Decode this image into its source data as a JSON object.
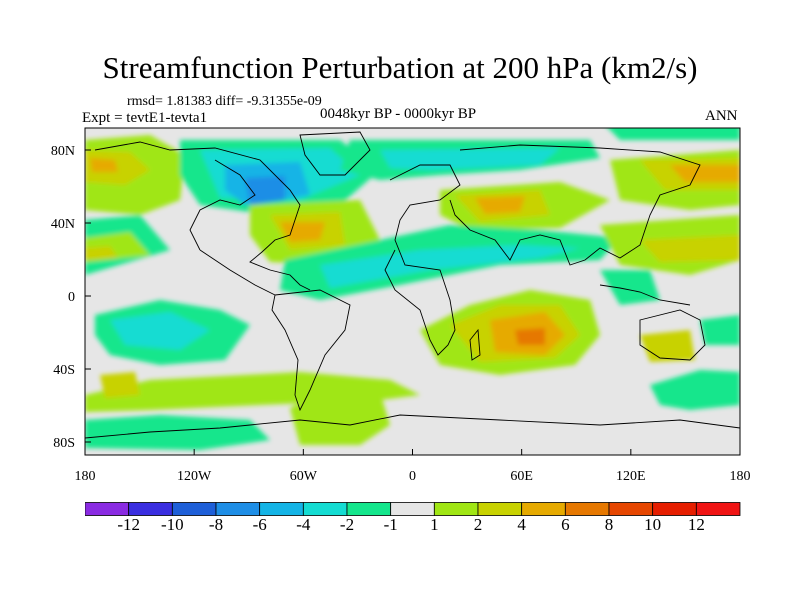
{
  "title": "Streamfunction Perturbation at 200 hPa (km2/s)",
  "stats_text": "rmsd= 1.81383 diff= -9.31355e-09",
  "experiment_text": "Expt = tevtE1-tevta1",
  "period_text": "0048kyr BP - 0000kyr BP",
  "season_text": "ANN",
  "chart_data": {
    "type": "heatmap",
    "map_projection": "cylindrical-equidistant",
    "variable": "Streamfunction Perturbation at 200 hPa",
    "units": "km2/s",
    "x_ticks": [
      "180",
      "120W",
      "60W",
      "0",
      "60E",
      "120E",
      "180"
    ],
    "y_ticks": [
      "80N",
      "40N",
      "0",
      "40S",
      "80S"
    ],
    "xlim": [
      -180,
      180
    ],
    "ylim": [
      -90,
      90
    ],
    "colorbar": {
      "levels": [
        "-12",
        "-10",
        "-8",
        "-6",
        "-4",
        "-2",
        "-1",
        "1",
        "2",
        "4",
        "6",
        "8",
        "10",
        "12"
      ],
      "colors": [
        "#8a2be2",
        "#3a2ee0",
        "#1e5fd8",
        "#1e8ee6",
        "#14b4e6",
        "#14dcd2",
        "#14e68c",
        "#e6e6e6",
        "#a0e614",
        "#c8d200",
        "#e6aa00",
        "#e67800",
        "#e64600",
        "#e61e00",
        "#f01414"
      ]
    }
  }
}
